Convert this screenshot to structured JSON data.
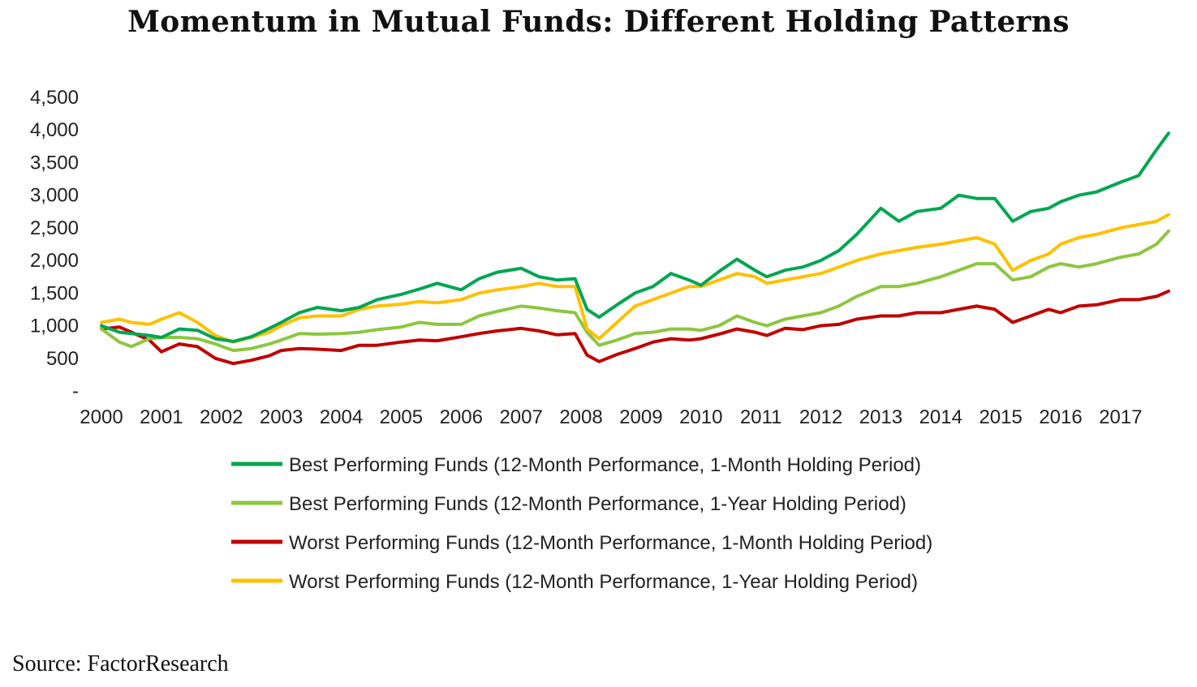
{
  "title": "Momentum in Mutual Funds: Different Holding Patterns",
  "source": "Source: FactorResearch",
  "chart_data": {
    "type": "line",
    "title": "",
    "xlabel": "",
    "ylabel": "",
    "x_ticks": [
      "2000",
      "2001",
      "2002",
      "2003",
      "2004",
      "2005",
      "2006",
      "2007",
      "2008",
      "2009",
      "2010",
      "2011",
      "2012",
      "2013",
      "2014",
      "2015",
      "2016",
      "2017"
    ],
    "y_ticks": [
      "-",
      "500",
      "1,000",
      "1,500",
      "2,000",
      "2,500",
      "3,000",
      "3,500",
      "4,000",
      "4,500"
    ],
    "ylim": [
      0,
      4500
    ],
    "xlim": [
      2000,
      2017.8
    ],
    "grid": false,
    "legend_position": "bottom",
    "series": [
      {
        "name": "Best Performing Funds (12-Month Performance, 1-Month Holding Period)",
        "color": "#00A651",
        "x": [
          2000,
          2000.3,
          2000.5,
          2000.8,
          2001,
          2001.3,
          2001.6,
          2001.9,
          2002.2,
          2002.5,
          2002.8,
          2003,
          2003.3,
          2003.6,
          2004,
          2004.3,
          2004.6,
          2005,
          2005.3,
          2005.6,
          2006,
          2006.3,
          2006.6,
          2007,
          2007.3,
          2007.6,
          2007.9,
          2008.1,
          2008.3,
          2008.6,
          2008.9,
          2009.2,
          2009.5,
          2009.8,
          2010,
          2010.3,
          2010.6,
          2010.9,
          2011.1,
          2011.4,
          2011.7,
          2012,
          2012.3,
          2012.6,
          2013,
          2013.3,
          2013.6,
          2014,
          2014.3,
          2014.6,
          2014.9,
          2015.2,
          2015.5,
          2015.8,
          2016,
          2016.3,
          2016.6,
          2017,
          2017.3,
          2017.6,
          2017.8
        ],
        "y": [
          1000,
          900,
          880,
          850,
          820,
          950,
          930,
          800,
          760,
          830,
          960,
          1050,
          1200,
          1280,
          1230,
          1280,
          1400,
          1480,
          1560,
          1650,
          1550,
          1720,
          1820,
          1880,
          1750,
          1700,
          1720,
          1250,
          1130,
          1320,
          1500,
          1600,
          1800,
          1700,
          1620,
          1830,
          2020,
          1850,
          1750,
          1850,
          1900,
          2000,
          2150,
          2400,
          2800,
          2600,
          2750,
          2800,
          3000,
          2950,
          2950,
          2600,
          2750,
          2800,
          2900,
          3000,
          3050,
          3200,
          3300,
          3700,
          3950
        ]
      },
      {
        "name": "Best Performing Funds (12-Month Performance, 1-Year Holding Period)",
        "color": "#8DC63F",
        "x": [
          2000,
          2000.3,
          2000.5,
          2000.8,
          2001,
          2001.3,
          2001.6,
          2001.9,
          2002.2,
          2002.5,
          2002.8,
          2003,
          2003.3,
          2003.6,
          2004,
          2004.3,
          2004.6,
          2005,
          2005.3,
          2005.6,
          2006,
          2006.3,
          2006.6,
          2007,
          2007.3,
          2007.6,
          2007.9,
          2008.1,
          2008.3,
          2008.6,
          2008.9,
          2009.2,
          2009.5,
          2009.8,
          2010,
          2010.3,
          2010.6,
          2010.9,
          2011.1,
          2011.4,
          2011.7,
          2012,
          2012.3,
          2012.6,
          2013,
          2013.3,
          2013.6,
          2014,
          2014.3,
          2014.6,
          2014.9,
          2015.2,
          2015.5,
          2015.8,
          2016,
          2016.3,
          2016.6,
          2017,
          2017.3,
          2017.6,
          2017.8
        ],
        "y": [
          950,
          750,
          680,
          800,
          820,
          820,
          800,
          720,
          620,
          650,
          720,
          780,
          880,
          870,
          880,
          900,
          940,
          980,
          1050,
          1020,
          1020,
          1150,
          1220,
          1300,
          1270,
          1230,
          1200,
          900,
          700,
          780,
          880,
          900,
          950,
          950,
          930,
          1000,
          1150,
          1050,
          1000,
          1100,
          1150,
          1200,
          1300,
          1450,
          1600,
          1600,
          1650,
          1750,
          1850,
          1950,
          1950,
          1700,
          1750,
          1900,
          1950,
          1900,
          1950,
          2050,
          2100,
          2250,
          2450
        ]
      },
      {
        "name": "Worst Performing Funds (12-Month Performance, 1-Month Holding Period)",
        "color": "#C00000",
        "x": [
          2000,
          2000.3,
          2000.5,
          2000.8,
          2001,
          2001.3,
          2001.6,
          2001.9,
          2002.2,
          2002.5,
          2002.8,
          2003,
          2003.3,
          2003.6,
          2004,
          2004.3,
          2004.6,
          2005,
          2005.3,
          2005.6,
          2006,
          2006.3,
          2006.6,
          2007,
          2007.3,
          2007.6,
          2007.9,
          2008.1,
          2008.3,
          2008.6,
          2008.9,
          2009.2,
          2009.5,
          2009.8,
          2010,
          2010.3,
          2010.6,
          2010.9,
          2011.1,
          2011.4,
          2011.7,
          2012,
          2012.3,
          2012.6,
          2013,
          2013.3,
          2013.6,
          2014,
          2014.3,
          2014.6,
          2014.9,
          2015.2,
          2015.5,
          2015.8,
          2016,
          2016.3,
          2016.6,
          2017,
          2017.3,
          2017.6,
          2017.8
        ],
        "y": [
          950,
          980,
          900,
          780,
          600,
          720,
          680,
          500,
          420,
          470,
          540,
          620,
          650,
          640,
          620,
          700,
          700,
          750,
          780,
          770,
          830,
          880,
          920,
          960,
          920,
          860,
          880,
          550,
          450,
          560,
          650,
          750,
          800,
          780,
          800,
          870,
          950,
          900,
          850,
          960,
          940,
          1000,
          1020,
          1100,
          1150,
          1150,
          1200,
          1200,
          1250,
          1300,
          1250,
          1050,
          1150,
          1250,
          1200,
          1300,
          1320,
          1400,
          1400,
          1450,
          1530
        ]
      },
      {
        "name": "Worst Performing Funds (12-Month Performance, 1-Year Holding Period)",
        "color": "#FFC000",
        "x": [
          2000,
          2000.3,
          2000.5,
          2000.8,
          2001,
          2001.3,
          2001.6,
          2001.9,
          2002.2,
          2002.5,
          2002.8,
          2003,
          2003.3,
          2003.6,
          2004,
          2004.3,
          2004.6,
          2005,
          2005.3,
          2005.6,
          2006,
          2006.3,
          2006.6,
          2007,
          2007.3,
          2007.6,
          2007.9,
          2008.1,
          2008.3,
          2008.6,
          2008.9,
          2009.2,
          2009.5,
          2009.8,
          2010,
          2010.3,
          2010.6,
          2010.9,
          2011.1,
          2011.4,
          2011.7,
          2012,
          2012.3,
          2012.6,
          2013,
          2013.3,
          2013.6,
          2014,
          2014.3,
          2014.6,
          2014.9,
          2015.2,
          2015.5,
          2015.8,
          2016,
          2016.3,
          2016.6,
          2017,
          2017.3,
          2017.6,
          2017.8
        ],
        "y": [
          1050,
          1100,
          1050,
          1020,
          1100,
          1200,
          1050,
          850,
          750,
          820,
          900,
          1000,
          1120,
          1150,
          1150,
          1250,
          1300,
          1330,
          1370,
          1350,
          1400,
          1500,
          1550,
          1600,
          1650,
          1600,
          1600,
          950,
          800,
          1050,
          1300,
          1400,
          1500,
          1600,
          1600,
          1700,
          1800,
          1750,
          1650,
          1700,
          1750,
          1800,
          1900,
          2000,
          2100,
          2150,
          2200,
          2250,
          2300,
          2350,
          2250,
          1850,
          2000,
          2100,
          2250,
          2350,
          2400,
          2500,
          2550,
          2600,
          2700
        ]
      }
    ]
  }
}
